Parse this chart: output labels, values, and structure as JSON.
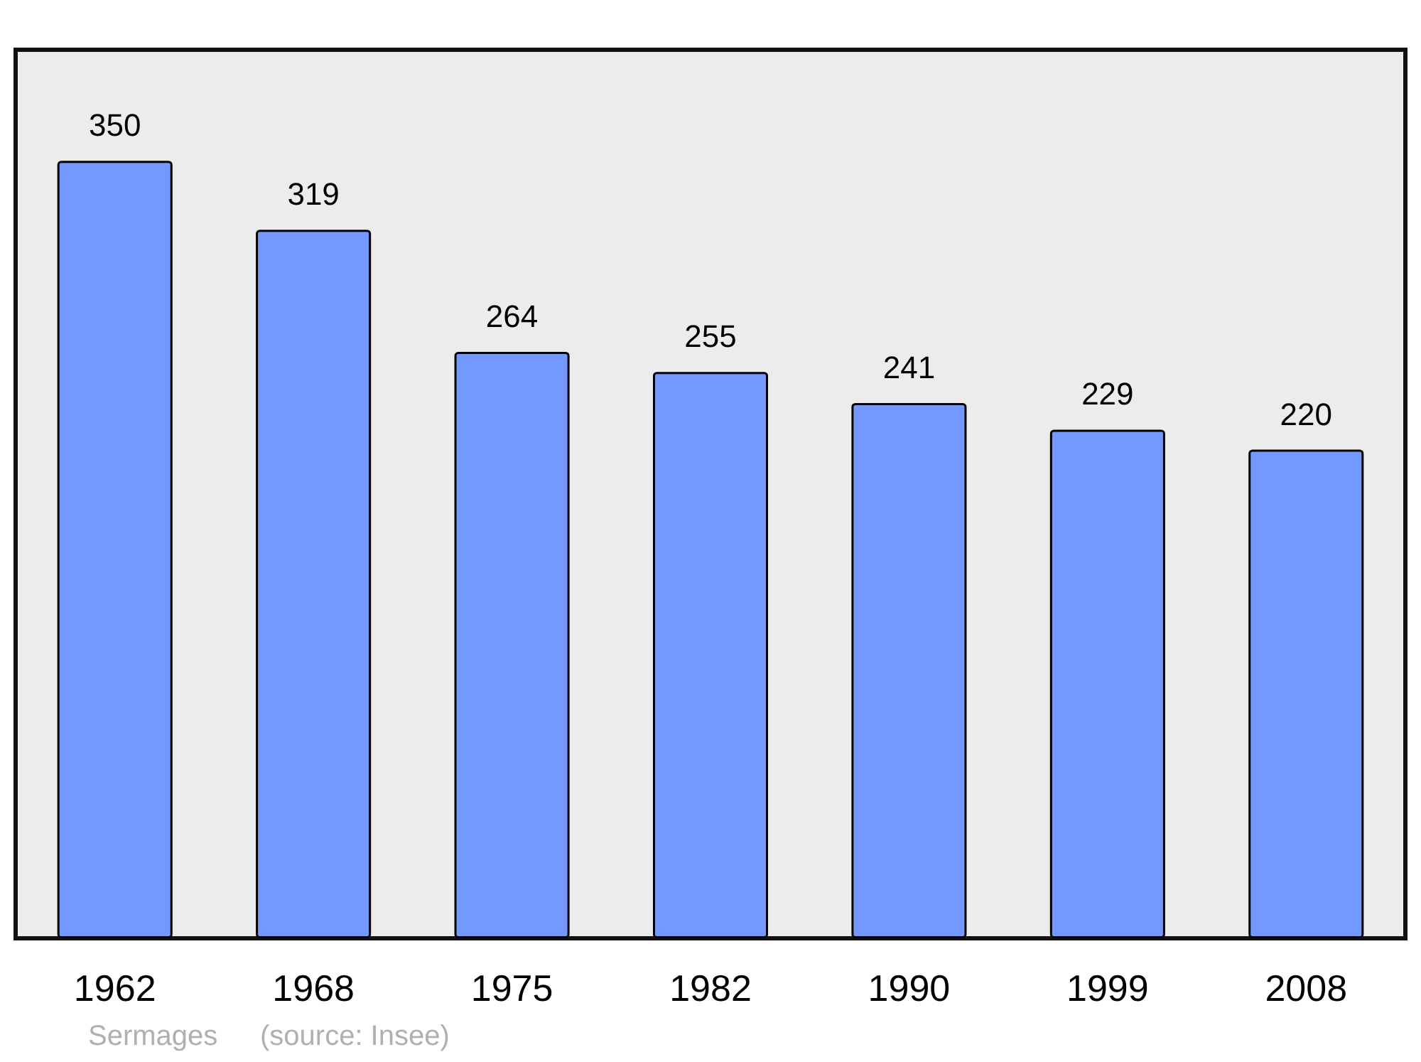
{
  "chart_data": {
    "type": "bar",
    "categories": [
      "1962",
      "1968",
      "1975",
      "1982",
      "1990",
      "1999",
      "2008"
    ],
    "values": [
      350,
      319,
      264,
      255,
      241,
      229,
      220
    ],
    "color": "#7399ff",
    "data_labels": true,
    "annotations": [
      "Sermages",
      "(source: Insee)"
    ]
  }
}
